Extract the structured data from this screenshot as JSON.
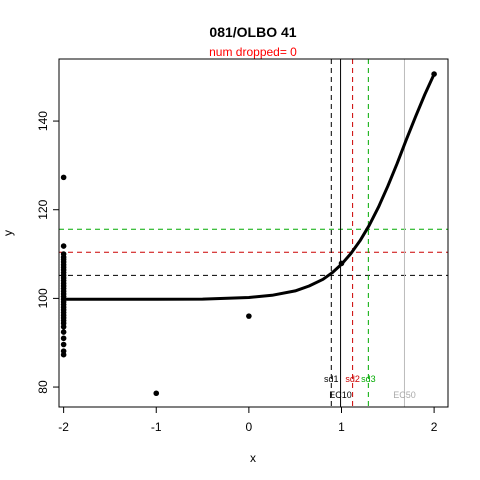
{
  "chart_data": {
    "type": "scatter",
    "title": "081/OLBO 41",
    "subtitle": "num dropped= 0",
    "xlabel": "x",
    "ylabel": "y",
    "xlim": [
      -2.05,
      2.15
    ],
    "ylim": [
      75.5,
      154
    ],
    "x_ticks": [
      -2,
      -1,
      0,
      1,
      2
    ],
    "y_ticks": [
      80,
      100,
      120,
      140
    ],
    "grid": false,
    "points": [
      {
        "x": -2,
        "y": 127.3
      },
      {
        "x": -2,
        "y": 111.8
      },
      {
        "x": -2,
        "y": 110.0
      },
      {
        "x": -2,
        "y": 109.3
      },
      {
        "x": -2,
        "y": 108.8
      },
      {
        "x": -2,
        "y": 108.2
      },
      {
        "x": -2,
        "y": 107.6
      },
      {
        "x": -2,
        "y": 107.0
      },
      {
        "x": -2,
        "y": 106.4
      },
      {
        "x": -2,
        "y": 105.8
      },
      {
        "x": -2,
        "y": 105.2
      },
      {
        "x": -2,
        "y": 104.6
      },
      {
        "x": -2,
        "y": 104.0
      },
      {
        "x": -2,
        "y": 103.4
      },
      {
        "x": -2,
        "y": 102.8
      },
      {
        "x": -2,
        "y": 102.2
      },
      {
        "x": -2,
        "y": 101.6
      },
      {
        "x": -2,
        "y": 101.0
      },
      {
        "x": -2,
        "y": 100.4
      },
      {
        "x": -2,
        "y": 99.8
      },
      {
        "x": -2,
        "y": 99.2
      },
      {
        "x": -2,
        "y": 98.6
      },
      {
        "x": -2,
        "y": 98.0
      },
      {
        "x": -2,
        "y": 97.4
      },
      {
        "x": -2,
        "y": 96.8
      },
      {
        "x": -2,
        "y": 96.2
      },
      {
        "x": -2,
        "y": 95.6
      },
      {
        "x": -2,
        "y": 95.0
      },
      {
        "x": -2,
        "y": 94.4
      },
      {
        "x": -2,
        "y": 93.6
      },
      {
        "x": -2,
        "y": 92.4
      },
      {
        "x": -2,
        "y": 91.0
      },
      {
        "x": -2,
        "y": 89.6
      },
      {
        "x": -2,
        "y": 88.1
      },
      {
        "x": -2,
        "y": 87.3
      },
      {
        "x": -1,
        "y": 78.6
      },
      {
        "x": 0,
        "y": 96.0
      },
      {
        "x": 1,
        "y": 107.9
      },
      {
        "x": 2,
        "y": 150.6
      }
    ],
    "fit_curve": {
      "name": "fit",
      "x": [
        -2.0,
        -1.5,
        -1.0,
        -0.5,
        0.0,
        0.25,
        0.5,
        0.65,
        0.8,
        0.9,
        1.0,
        1.1,
        1.2,
        1.3,
        1.4,
        1.5,
        1.6,
        1.7,
        1.8,
        1.9,
        2.0
      ],
      "y": [
        99.8,
        99.8,
        99.8,
        99.85,
        100.2,
        100.7,
        101.7,
        102.8,
        104.3,
        105.8,
        107.7,
        110.1,
        113.0,
        116.5,
        120.6,
        125.3,
        130.4,
        135.8,
        141.0,
        146.0,
        150.6
      ]
    },
    "horizontal_lines": [
      {
        "y": 105.2,
        "color": "#000000",
        "style": "dashed"
      },
      {
        "y": 110.4,
        "color": "#cc0000",
        "style": "dashed"
      },
      {
        "y": 115.6,
        "color": "#00aa00",
        "style": "dashed"
      }
    ],
    "vertical_lines": [
      {
        "x": 0.89,
        "color": "#000000",
        "style": "dashed",
        "label": "sd1",
        "label_y": 81.8
      },
      {
        "x": 0.99,
        "color": "#000000",
        "style": "solid",
        "label": "EC10",
        "label_y": 78.2
      },
      {
        "x": 1.12,
        "color": "#cc0000",
        "style": "dashed",
        "label": "sd2",
        "label_y": 81.8
      },
      {
        "x": 1.29,
        "color": "#00aa00",
        "style": "dashed",
        "label": "sd3",
        "label_y": 81.8
      },
      {
        "x": 1.68,
        "color": "#bbbbbb",
        "style": "solid",
        "label": "EC50",
        "label_y": 78.2
      }
    ]
  }
}
